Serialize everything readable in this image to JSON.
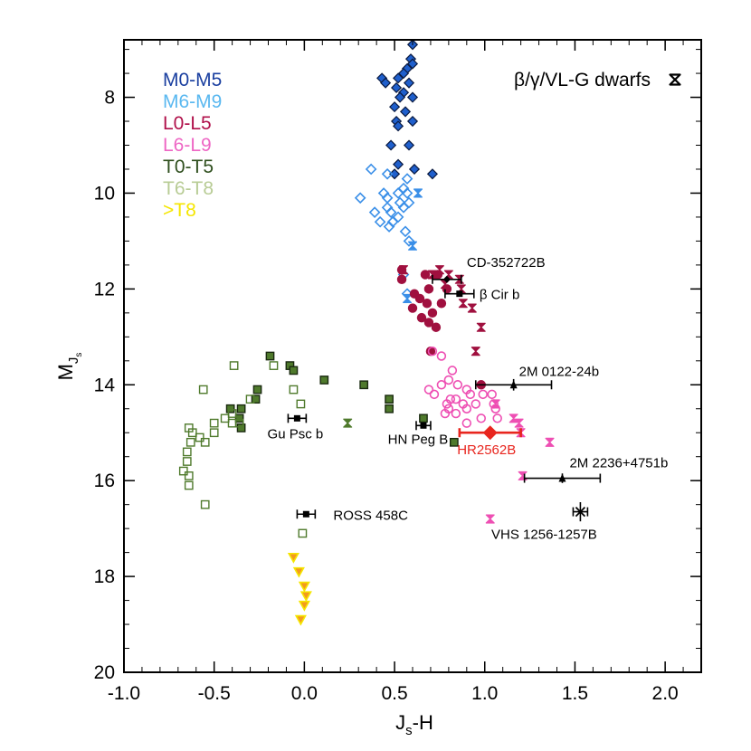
{
  "chart_data": {
    "type": "scatter",
    "xlabel": "Js-H",
    "xlabel_main": "J",
    "xlabel_sub": "s",
    "xlabel_tail": "-H",
    "ylabel_main": "M",
    "ylabel_sub": "J",
    "ylabel_subsub": "s",
    "xlim": [
      -1.0,
      2.2
    ],
    "ylim": [
      20,
      6.8
    ],
    "y_inverted": true,
    "xticks": [
      -1.0,
      -0.5,
      0.0,
      0.5,
      1.0,
      1.5,
      2.0
    ],
    "xtick_labels": [
      "-1.0",
      "-0.5",
      "0.0",
      "0.5",
      "1.0",
      "1.5",
      "2.0"
    ],
    "yticks": [
      8,
      10,
      12,
      14,
      16,
      18,
      20
    ],
    "ytick_labels": [
      "8",
      "10",
      "12",
      "14",
      "16",
      "18",
      "20"
    ],
    "grid": false,
    "legend": {
      "placement": "top-left",
      "entries": [
        {
          "label": "M0-M5",
          "color": "#1a3fa0"
        },
        {
          "label": "M6-M9",
          "color": "#5ab8f0"
        },
        {
          "label": "L0-L5",
          "color": "#b0104a"
        },
        {
          "label": "L6-L9",
          "color": "#ee66c4"
        },
        {
          "label": "T0-T5",
          "color": "#2f4f1e"
        },
        {
          "label": "T6-T8",
          "color": "#b8cc95"
        },
        {
          "label": ">T8",
          "color": "#f5e600"
        }
      ],
      "marker_legend": {
        "label": "β/γ/VL-G dwarfs",
        "placement": "top-right"
      }
    },
    "series": [
      {
        "name": "M0-M5",
        "marker": "diamond-filled",
        "color": "#1f5fcc",
        "edge": "#0a1a40",
        "points": [
          [
            0.6,
            6.9
          ],
          [
            0.59,
            7.2
          ],
          [
            0.6,
            7.3
          ],
          [
            0.57,
            7.4
          ],
          [
            0.55,
            7.5
          ],
          [
            0.52,
            7.6
          ],
          [
            0.43,
            7.6
          ],
          [
            0.45,
            7.7
          ],
          [
            0.58,
            7.7
          ],
          [
            0.51,
            7.8
          ],
          [
            0.55,
            7.9
          ],
          [
            0.53,
            8.0
          ],
          [
            0.6,
            8.0
          ],
          [
            0.5,
            8.2
          ],
          [
            0.56,
            8.3
          ],
          [
            0.51,
            8.5
          ],
          [
            0.52,
            8.6
          ],
          [
            0.6,
            8.5
          ],
          [
            0.48,
            9.0
          ],
          [
            0.58,
            9.0
          ],
          [
            0.52,
            9.4
          ],
          [
            0.61,
            9.5
          ],
          [
            0.5,
            9.6
          ],
          [
            0.71,
            9.6
          ]
        ]
      },
      {
        "name": "M6-M9",
        "marker": "diamond-open",
        "color": "#3a8fe8",
        "points": [
          [
            0.37,
            9.5
          ],
          [
            0.46,
            9.6
          ],
          [
            0.57,
            9.7
          ],
          [
            0.55,
            9.9
          ],
          [
            0.44,
            10.0
          ],
          [
            0.52,
            10.0
          ],
          [
            0.57,
            10.0
          ],
          [
            0.46,
            10.1
          ],
          [
            0.31,
            10.1
          ],
          [
            0.53,
            10.2
          ],
          [
            0.58,
            10.2
          ],
          [
            0.46,
            10.3
          ],
          [
            0.55,
            10.3
          ],
          [
            0.48,
            10.4
          ],
          [
            0.52,
            10.5
          ],
          [
            0.39,
            10.4
          ],
          [
            0.42,
            10.6
          ],
          [
            0.49,
            10.6
          ],
          [
            0.47,
            10.7
          ],
          [
            0.56,
            10.8
          ],
          [
            0.58,
            11.0
          ],
          [
            0.55,
            11.7
          ],
          [
            0.57,
            12.1
          ]
        ]
      },
      {
        "name": "M6-M9 β/γ/VL-G",
        "marker": "hourglass",
        "color": "#3a8fe8",
        "points": [
          [
            0.63,
            10.0
          ],
          [
            0.6,
            11.1
          ],
          [
            0.57,
            12.2
          ]
        ]
      },
      {
        "name": "L0-L5",
        "marker": "circle-filled",
        "color": "#a0103f",
        "points": [
          [
            0.54,
            11.6
          ],
          [
            0.67,
            11.7
          ],
          [
            0.74,
            11.7
          ],
          [
            0.54,
            11.8
          ],
          [
            0.79,
            12.0
          ],
          [
            0.61,
            12.1
          ],
          [
            0.64,
            12.2
          ],
          [
            0.69,
            12.0
          ],
          [
            0.68,
            12.3
          ],
          [
            0.76,
            12.3
          ],
          [
            0.71,
            12.5
          ],
          [
            0.6,
            12.4
          ],
          [
            0.65,
            12.6
          ],
          [
            0.69,
            12.7
          ],
          [
            0.73,
            12.8
          ],
          [
            0.7,
            13.3
          ],
          [
            0.98,
            14.0
          ]
        ]
      },
      {
        "name": "L0-L5 β/γ/VL-G",
        "marker": "hourglass",
        "color": "#a0103f",
        "points": [
          [
            0.55,
            11.6
          ],
          [
            0.75,
            11.6
          ],
          [
            0.8,
            11.7
          ],
          [
            0.71,
            11.7
          ],
          [
            0.86,
            11.8
          ],
          [
            0.78,
            11.9
          ],
          [
            0.87,
            12.0
          ],
          [
            0.88,
            12.3
          ],
          [
            0.93,
            12.4
          ],
          [
            0.98,
            12.8
          ],
          [
            0.95,
            13.3
          ]
        ]
      },
      {
        "name": "L6-L9",
        "marker": "circle-open",
        "color": "#ee4fb3",
        "points": [
          [
            0.71,
            13.3
          ],
          [
            0.76,
            13.4
          ],
          [
            0.82,
            13.7
          ],
          [
            0.8,
            13.9
          ],
          [
            0.69,
            14.1
          ],
          [
            0.76,
            14.0
          ],
          [
            0.85,
            14.0
          ],
          [
            0.9,
            14.1
          ],
          [
            0.72,
            14.2
          ],
          [
            0.81,
            14.3
          ],
          [
            0.84,
            14.3
          ],
          [
            0.92,
            14.2
          ],
          [
            0.99,
            14.2
          ],
          [
            1.04,
            14.2
          ],
          [
            0.79,
            14.4
          ],
          [
            0.88,
            14.4
          ],
          [
            0.95,
            14.4
          ],
          [
            1.05,
            14.4
          ],
          [
            0.8,
            14.5
          ],
          [
            0.9,
            14.5
          ],
          [
            1.06,
            14.5
          ],
          [
            0.84,
            14.6
          ],
          [
            0.98,
            14.7
          ],
          [
            1.07,
            14.7
          ],
          [
            0.9,
            14.8
          ],
          [
            0.78,
            14.6
          ]
        ]
      },
      {
        "name": "L6-L9 β/γ/VL-G",
        "marker": "hourglass",
        "color": "#ee4fb3",
        "points": [
          [
            1.06,
            14.4
          ],
          [
            1.16,
            14.7
          ],
          [
            1.19,
            14.8
          ],
          [
            1.2,
            15.0
          ],
          [
            1.36,
            15.2
          ],
          [
            1.21,
            15.9
          ],
          [
            1.03,
            16.8
          ]
        ]
      },
      {
        "name": "T0-T5",
        "marker": "square-filled",
        "color": "#4f7a2c",
        "edge": "#1a2a10",
        "points": [
          [
            -0.19,
            13.4
          ],
          [
            -0.08,
            13.6
          ],
          [
            -0.06,
            13.7
          ],
          [
            0.11,
            13.9
          ],
          [
            0.33,
            14.0
          ],
          [
            -0.26,
            14.1
          ],
          [
            -0.27,
            14.3
          ],
          [
            -0.41,
            14.5
          ],
          [
            -0.35,
            14.5
          ],
          [
            -0.36,
            14.7
          ],
          [
            0.47,
            14.3
          ],
          [
            0.47,
            14.5
          ],
          [
            -0.35,
            14.9
          ],
          [
            0.66,
            14.7
          ],
          [
            0.83,
            15.2
          ]
        ]
      },
      {
        "name": "T0-T5 β/γ/VL-G",
        "marker": "hourglass",
        "color": "#4f7a2c",
        "points": [
          [
            0.24,
            14.8
          ]
        ]
      },
      {
        "name": "T6-T8",
        "marker": "square-open",
        "color": "#4f7a2c",
        "points": [
          [
            -0.39,
            13.6
          ],
          [
            -0.17,
            13.6
          ],
          [
            -0.56,
            14.1
          ],
          [
            -0.3,
            14.3
          ],
          [
            -0.4,
            14.6
          ],
          [
            -0.06,
            14.1
          ],
          [
            -0.02,
            14.4
          ],
          [
            -0.5,
            14.8
          ],
          [
            -0.36,
            14.8
          ],
          [
            -0.44,
            14.7
          ],
          [
            -0.4,
            14.8
          ],
          [
            -0.5,
            15.0
          ],
          [
            -0.64,
            14.9
          ],
          [
            -0.62,
            15.0
          ],
          [
            -0.63,
            15.2
          ],
          [
            -0.58,
            15.1
          ],
          [
            -0.55,
            15.2
          ],
          [
            -0.65,
            15.4
          ],
          [
            -0.65,
            15.6
          ],
          [
            -0.67,
            15.8
          ],
          [
            -0.64,
            15.9
          ],
          [
            -0.64,
            16.1
          ],
          [
            -0.55,
            16.5
          ],
          [
            -0.01,
            17.1
          ]
        ]
      },
      {
        "name": ">T8",
        "marker": "triangle-down",
        "color": "#f39a1e",
        "edge": "#f5e600",
        "points": [
          [
            -0.06,
            17.6
          ],
          [
            -0.03,
            17.9
          ],
          [
            0.0,
            18.2
          ],
          [
            0.01,
            18.4
          ],
          [
            0.0,
            18.6
          ],
          [
            -0.02,
            18.9
          ]
        ]
      }
    ],
    "companions": [
      {
        "label": "CD-352722B",
        "x": 0.79,
        "y": 11.8,
        "xerr": 0.08,
        "yerr": 0.05,
        "marker": "diamond"
      },
      {
        "label": "β Cir b",
        "x": 0.86,
        "y": 12.1,
        "xerr": 0.08,
        "yerr": 0.05,
        "marker": "square"
      },
      {
        "label": "2M 0122-24b",
        "x": 1.16,
        "y": 14.0,
        "xerr": 0.21,
        "yerr": 0.12,
        "marker": "triangle"
      },
      {
        "label": "Gu Psc b",
        "x": -0.04,
        "y": 14.7,
        "xerr": 0.05,
        "yerr": 0.05,
        "marker": "square"
      },
      {
        "label": "HN Peg B",
        "x": 0.66,
        "y": 14.85,
        "xerr": 0.04,
        "yerr": 0.05,
        "marker": "square"
      },
      {
        "label": "HR2562B",
        "x": 1.03,
        "y": 15.0,
        "xerr": 0.17,
        "yerr": 0.12,
        "marker": "diamond",
        "color": "#e8251e"
      },
      {
        "label": "2M 2236+4751b",
        "x": 1.43,
        "y": 15.95,
        "xerr": 0.21,
        "yerr": 0.1,
        "marker": "triangle"
      },
      {
        "label": "ROSS 458C",
        "x": 0.01,
        "y": 16.7,
        "xerr": 0.05,
        "yerr": 0.05,
        "marker": "square"
      },
      {
        "label": "VHS 1256-1257B",
        "x": 1.53,
        "y": 16.65,
        "xerr": 0.04,
        "yerr": 0.2,
        "marker": "cross"
      }
    ]
  }
}
